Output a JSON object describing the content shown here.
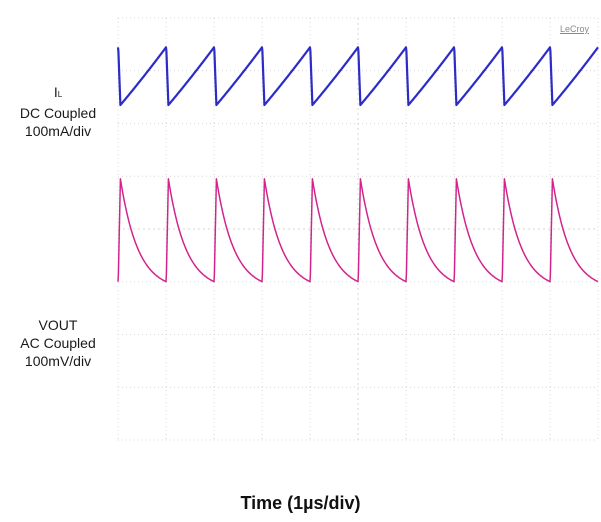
{
  "chart_data": {
    "type": "line",
    "title": "",
    "brand": "LeCroy",
    "xlabel": "Time (1µs/div)",
    "grid": true,
    "xlim": [
      0,
      10
    ],
    "ylim": [
      -4,
      4
    ],
    "channels": [
      {
        "name_main": "I",
        "name_sub": "L",
        "coupling": "DC Coupled",
        "scale": "100mA/div",
        "color": "#2b2bc8",
        "waveform": "sawtooth",
        "period": 1.0,
        "start_phase": 0.95,
        "min_div": 2.35,
        "max_div": 3.45
      },
      {
        "name_main": "VOUT",
        "name_sub": "",
        "coupling": "AC Coupled",
        "scale": "100mV/div",
        "color": "#d2258c",
        "waveform": "decay-sawtooth",
        "period": 1.0,
        "start_phase": 0.95,
        "min_div": -1.0,
        "max_div": 0.95
      }
    ]
  }
}
